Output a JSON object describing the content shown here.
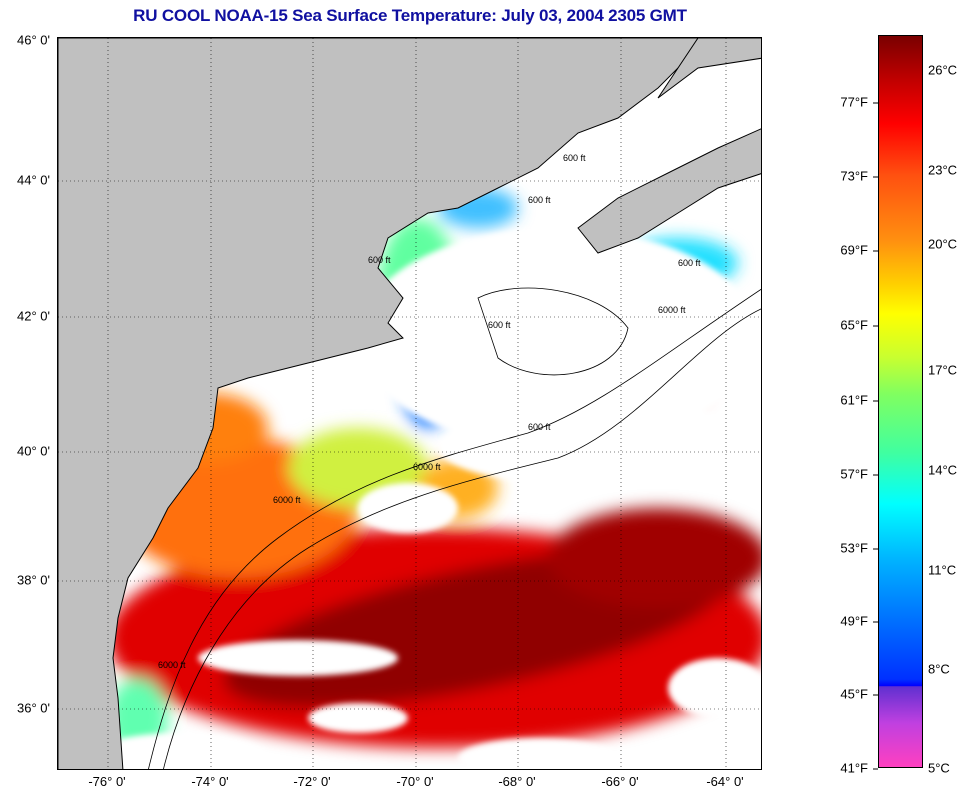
{
  "title": "RU COOL  NOAA-15  Sea Surface Temperature:  July 03, 2004 2305 GMT",
  "axes": {
    "latitude_labels": [
      "46° 0'",
      "44° 0'",
      "42° 0'",
      "40° 0'",
      "38° 0'",
      "36° 0'"
    ],
    "longitude_labels": [
      "-76° 0'",
      "-74° 0'",
      "-72° 0'",
      "-70° 0'",
      "-68° 0'",
      "-66° 0'",
      "-64° 0'"
    ]
  },
  "contour_labels": [
    "600 ft",
    "6000 ft",
    "600 ft",
    "600 ft",
    "6000 ft",
    "600 ft",
    "600 ft",
    "6000 ft",
    "600 ft",
    "6000 ft"
  ],
  "colorbar": {
    "fahrenheit_labels": [
      "77°F",
      "73°F",
      "69°F",
      "65°F",
      "61°F",
      "57°F",
      "53°F",
      "49°F",
      "45°F",
      "41°F"
    ],
    "celsius_labels": [
      "26°C",
      "23°C",
      "20°C",
      "17°C",
      "14°C",
      "11°C",
      "8°C",
      "5°C"
    ]
  },
  "colors": {
    "title": "#1010a0",
    "land": "#c0c0c0",
    "cloud": "#ffffff"
  }
}
